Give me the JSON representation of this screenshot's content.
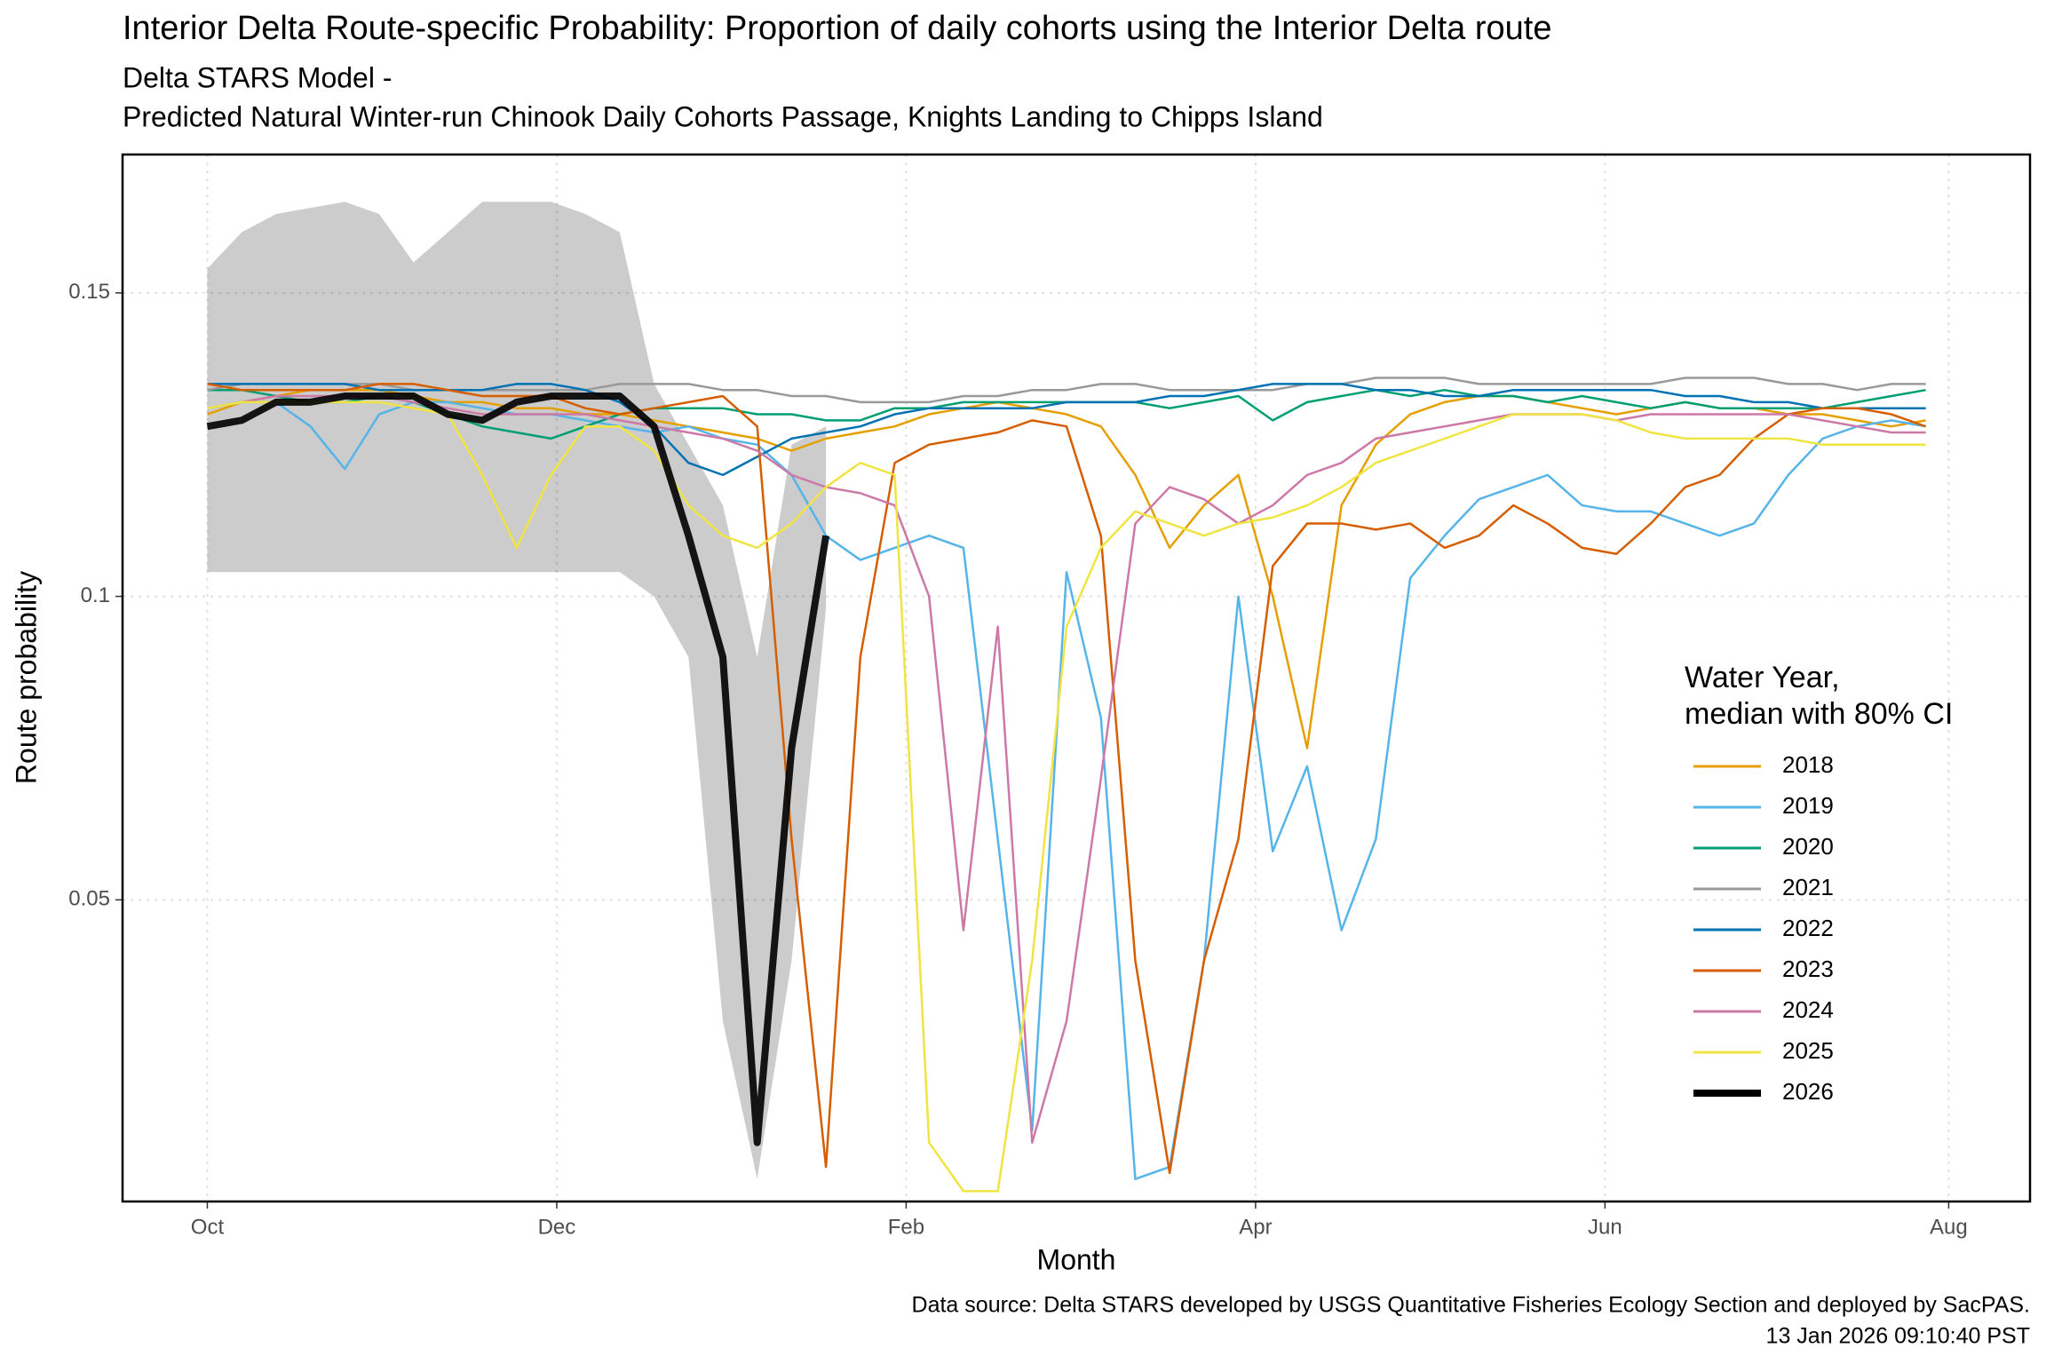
{
  "chart_data": {
    "type": "line",
    "title": "Interior Delta Route-specific Probability: Proportion of daily cohorts using the Interior Delta route",
    "subtitle": [
      "Delta STARS Model -",
      "Predicted Natural Winter-run Chinook Daily Cohorts Passage, Knights Landing to Chipps Island"
    ],
    "x_label": "Month",
    "y_label": "Route probability",
    "caption": [
      "Data source: Delta STARS developed by USGS Quantitative Fisheries Ecology Section and deployed by SacPAS.",
      "13 Jan 2026 09:10:40 PST"
    ],
    "legend_title": [
      "Water Year,",
      "median with 80% CI"
    ],
    "legend_position": "right",
    "grid": true,
    "xlim": [
      -14.8,
      318.2
    ],
    "ylim": [
      0.0003,
      0.1728
    ],
    "xticks": [
      {
        "value": 0,
        "label": "Oct"
      },
      {
        "value": 61,
        "label": "Dec"
      },
      {
        "value": 122,
        "label": "Feb"
      },
      {
        "value": 183,
        "label": "Apr"
      },
      {
        "value": 244,
        "label": "Jun"
      },
      {
        "value": 304,
        "label": "Aug"
      }
    ],
    "yticks": [
      0.05,
      0.1,
      0.15
    ],
    "x": [
      0,
      6,
      12,
      18,
      24,
      30,
      36,
      42,
      48,
      54,
      60,
      66,
      72,
      78,
      84,
      90,
      96,
      102,
      108,
      114,
      120,
      126,
      132,
      138,
      144,
      150,
      156,
      162,
      168,
      174,
      180,
      186,
      192,
      198,
      204,
      210,
      216,
      222,
      228,
      234,
      240,
      246,
      252,
      258,
      264,
      270,
      276,
      282,
      288,
      294,
      300
    ],
    "series": [
      {
        "name": "2018",
        "color": "#E69F00",
        "values": [
          0.13,
          0.132,
          0.133,
          0.134,
          0.134,
          0.134,
          0.133,
          0.132,
          0.132,
          0.131,
          0.131,
          0.13,
          0.13,
          0.129,
          0.128,
          0.127,
          0.126,
          0.124,
          0.126,
          0.127,
          0.128,
          0.13,
          0.131,
          0.132,
          0.131,
          0.13,
          0.128,
          0.12,
          0.108,
          0.115,
          0.12,
          0.1,
          0.075,
          0.115,
          0.125,
          0.13,
          0.132,
          0.133,
          0.133,
          0.132,
          0.131,
          0.13,
          0.131,
          0.132,
          0.131,
          0.131,
          0.13,
          0.13,
          0.129,
          0.128,
          0.129
        ]
      },
      {
        "name": "2019",
        "color": "#56B4E9",
        "values": [
          0.131,
          0.132,
          0.132,
          0.128,
          0.121,
          0.13,
          0.132,
          0.132,
          0.131,
          0.13,
          0.13,
          0.129,
          0.128,
          0.127,
          0.128,
          0.126,
          0.125,
          0.12,
          0.11,
          0.106,
          0.108,
          0.11,
          0.108,
          0.06,
          0.012,
          0.104,
          0.08,
          0.004,
          0.006,
          0.04,
          0.1,
          0.058,
          0.072,
          0.045,
          0.06,
          0.103,
          0.11,
          0.116,
          0.118,
          0.12,
          0.115,
          0.114,
          0.114,
          0.112,
          0.11,
          0.112,
          0.12,
          0.126,
          0.128,
          0.129,
          0.128
        ]
      },
      {
        "name": "2020",
        "color": "#009E73",
        "values": [
          0.134,
          0.134,
          0.133,
          0.132,
          0.132,
          0.133,
          0.132,
          0.13,
          0.128,
          0.127,
          0.126,
          0.128,
          0.13,
          0.131,
          0.131,
          0.131,
          0.13,
          0.13,
          0.129,
          0.129,
          0.131,
          0.131,
          0.132,
          0.132,
          0.132,
          0.132,
          0.132,
          0.132,
          0.131,
          0.132,
          0.133,
          0.129,
          0.132,
          0.133,
          0.134,
          0.133,
          0.134,
          0.133,
          0.133,
          0.132,
          0.133,
          0.132,
          0.131,
          0.132,
          0.131,
          0.131,
          0.131,
          0.131,
          0.132,
          0.133,
          0.134
        ]
      },
      {
        "name": "2021",
        "color": "#999999",
        "values": [
          0.134,
          0.135,
          0.135,
          0.135,
          0.135,
          0.135,
          0.134,
          0.134,
          0.134,
          0.134,
          0.134,
          0.134,
          0.135,
          0.135,
          0.135,
          0.134,
          0.134,
          0.133,
          0.133,
          0.132,
          0.132,
          0.132,
          0.133,
          0.133,
          0.134,
          0.134,
          0.135,
          0.135,
          0.134,
          0.134,
          0.134,
          0.134,
          0.135,
          0.135,
          0.136,
          0.136,
          0.136,
          0.135,
          0.135,
          0.135,
          0.135,
          0.135,
          0.135,
          0.136,
          0.136,
          0.136,
          0.135,
          0.135,
          0.134,
          0.135,
          0.135
        ]
      },
      {
        "name": "2022",
        "color": "#0072B2",
        "values": [
          0.135,
          0.135,
          0.135,
          0.135,
          0.135,
          0.134,
          0.134,
          0.134,
          0.134,
          0.135,
          0.135,
          0.134,
          0.132,
          0.128,
          0.122,
          0.12,
          0.123,
          0.126,
          0.127,
          0.128,
          0.13,
          0.131,
          0.131,
          0.131,
          0.131,
          0.132,
          0.132,
          0.132,
          0.133,
          0.133,
          0.134,
          0.135,
          0.135,
          0.135,
          0.134,
          0.134,
          0.133,
          0.133,
          0.134,
          0.134,
          0.134,
          0.134,
          0.134,
          0.133,
          0.133,
          0.132,
          0.132,
          0.131,
          0.131,
          0.131,
          0.131
        ]
      },
      {
        "name": "2023",
        "color": "#D55E00",
        "values": [
          0.135,
          0.134,
          0.134,
          0.134,
          0.134,
          0.135,
          0.135,
          0.134,
          0.133,
          0.133,
          0.133,
          0.131,
          0.13,
          0.131,
          0.132,
          0.133,
          0.128,
          0.06,
          0.006,
          0.09,
          0.122,
          0.125,
          0.126,
          0.127,
          0.129,
          0.128,
          0.11,
          0.04,
          0.005,
          0.04,
          0.06,
          0.105,
          0.112,
          0.112,
          0.111,
          0.112,
          0.108,
          0.11,
          0.115,
          0.112,
          0.108,
          0.107,
          0.112,
          0.118,
          0.12,
          0.126,
          0.13,
          0.131,
          0.131,
          0.13,
          0.128
        ]
      },
      {
        "name": "2024",
        "color": "#CC79A7",
        "values": [
          0.131,
          0.132,
          0.133,
          0.133,
          0.133,
          0.133,
          0.132,
          0.131,
          0.13,
          0.13,
          0.13,
          0.13,
          0.129,
          0.128,
          0.127,
          0.126,
          0.124,
          0.12,
          0.118,
          0.117,
          0.115,
          0.1,
          0.045,
          0.095,
          0.01,
          0.03,
          0.07,
          0.112,
          0.118,
          0.116,
          0.112,
          0.115,
          0.12,
          0.122,
          0.126,
          0.127,
          0.128,
          0.129,
          0.13,
          0.13,
          0.13,
          0.129,
          0.13,
          0.13,
          0.13,
          0.13,
          0.13,
          0.129,
          0.128,
          0.127,
          0.127
        ]
      },
      {
        "name": "2025",
        "color": "#F0E442",
        "values": [
          0.131,
          0.132,
          0.132,
          0.132,
          0.132,
          0.132,
          0.131,
          0.13,
          0.12,
          0.108,
          0.12,
          0.128,
          0.128,
          0.124,
          0.115,
          0.11,
          0.108,
          0.112,
          0.118,
          0.122,
          0.12,
          0.01,
          0.002,
          0.002,
          0.04,
          0.095,
          0.108,
          0.114,
          0.112,
          0.11,
          0.112,
          0.113,
          0.115,
          0.118,
          0.122,
          0.124,
          0.126,
          0.128,
          0.13,
          0.13,
          0.13,
          0.129,
          0.127,
          0.126,
          0.126,
          0.126,
          0.126,
          0.125,
          0.125,
          0.125,
          0.125
        ]
      },
      {
        "name": "2026",
        "color": "#000000",
        "values": [
          0.128,
          0.129,
          0.132,
          0.132,
          0.133,
          0.133,
          0.133,
          0.13,
          0.129,
          0.132,
          0.133,
          0.133,
          0.133,
          0.128,
          0.11,
          0.09,
          0.01,
          0.075,
          0.11,
          null,
          null,
          null,
          null,
          null,
          null,
          null,
          null,
          null,
          null,
          null,
          null,
          null,
          null,
          null,
          null,
          null,
          null,
          null,
          null,
          null,
          null,
          null,
          null,
          null,
          null,
          null,
          null,
          null,
          null,
          null,
          null
        ],
        "lower": [
          0.104,
          0.104,
          0.104,
          0.104,
          0.104,
          0.104,
          0.104,
          0.104,
          0.104,
          0.104,
          0.104,
          0.104,
          0.104,
          0.1,
          0.09,
          0.03,
          0.004,
          0.04,
          0.098,
          null,
          null,
          null,
          null,
          null,
          null,
          null,
          null,
          null,
          null,
          null,
          null,
          null,
          null,
          null,
          null,
          null,
          null,
          null,
          null,
          null,
          null,
          null,
          null,
          null,
          null,
          null,
          null,
          null,
          null,
          null,
          null
        ],
        "upper": [
          0.154,
          0.16,
          0.163,
          0.164,
          0.165,
          0.163,
          0.155,
          0.16,
          0.165,
          0.165,
          0.165,
          0.163,
          0.16,
          0.135,
          0.125,
          0.115,
          0.09,
          0.125,
          0.128,
          null,
          null,
          null,
          null,
          null,
          null,
          null,
          null,
          null,
          null,
          null,
          null,
          null,
          null,
          null,
          null,
          null,
          null,
          null,
          null,
          null,
          null,
          null,
          null,
          null,
          null,
          null,
          null,
          null,
          null,
          null,
          null
        ]
      }
    ]
  }
}
